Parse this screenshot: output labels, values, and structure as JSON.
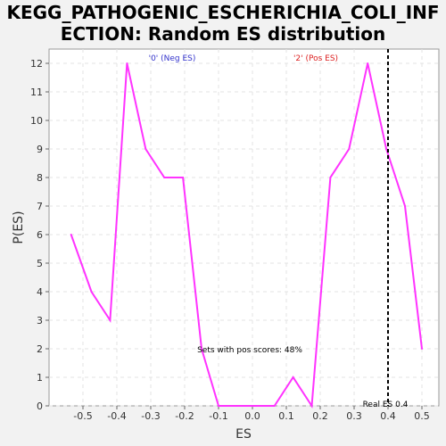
{
  "title_lines": [
    "KEGG_PATHOGENIC_ESCHERICHIA_COLI_INF",
    "ECTION: Random ES distribution"
  ],
  "chart_data": {
    "type": "line",
    "title": "KEGG_PATHOGENIC_ESCHERICHIA_COLI_INFECTION: Random ES distribution",
    "xlabel": "ES",
    "ylabel": "P(ES)",
    "xlim": [
      -0.6,
      0.55
    ],
    "ylim": [
      0,
      12.5
    ],
    "xticks": [
      -0.5,
      -0.4,
      -0.3,
      -0.2,
      -0.1,
      0.0,
      0.1,
      0.2,
      0.3,
      0.4,
      0.5
    ],
    "xtick_labels": [
      "-0.5",
      "-0.4",
      "-0.3",
      "-0.2",
      "-0.1",
      "0.0",
      "0.1",
      "0.2",
      "0.3",
      "0.4",
      "0.5"
    ],
    "yticks": [
      0,
      1,
      2,
      3,
      4,
      5,
      6,
      7,
      8,
      9,
      10,
      11,
      12
    ],
    "ytick_labels": [
      "0",
      "1",
      "2",
      "3",
      "4",
      "5",
      "6",
      "7",
      "8",
      "9",
      "10",
      "11",
      "12"
    ],
    "grid": true,
    "series": [
      {
        "color": "#ff33ff",
        "x": [
          -0.535,
          -0.475,
          -0.42,
          -0.37,
          -0.315,
          -0.26,
          -0.205,
          -0.15,
          -0.1,
          -0.045,
          0.01,
          0.065,
          0.12,
          0.175,
          0.23,
          0.285,
          0.34,
          0.395,
          0.45,
          0.5
        ],
        "y": [
          6,
          4,
          3,
          12,
          9,
          8,
          8,
          2,
          0,
          0,
          0,
          0,
          1,
          0,
          8,
          9,
          12,
          9,
          7,
          2
        ]
      }
    ],
    "real_es": 0.4,
    "annotations": {
      "neg_label": "'0' (Neg ES)",
      "neg_color": "#3333cc",
      "pos_label": "'2' (Pos ES)",
      "pos_color": "#dd2222",
      "pos_scores": "Sets with pos scores: 48%",
      "real_es_label": "Real ES 0.4"
    }
  }
}
